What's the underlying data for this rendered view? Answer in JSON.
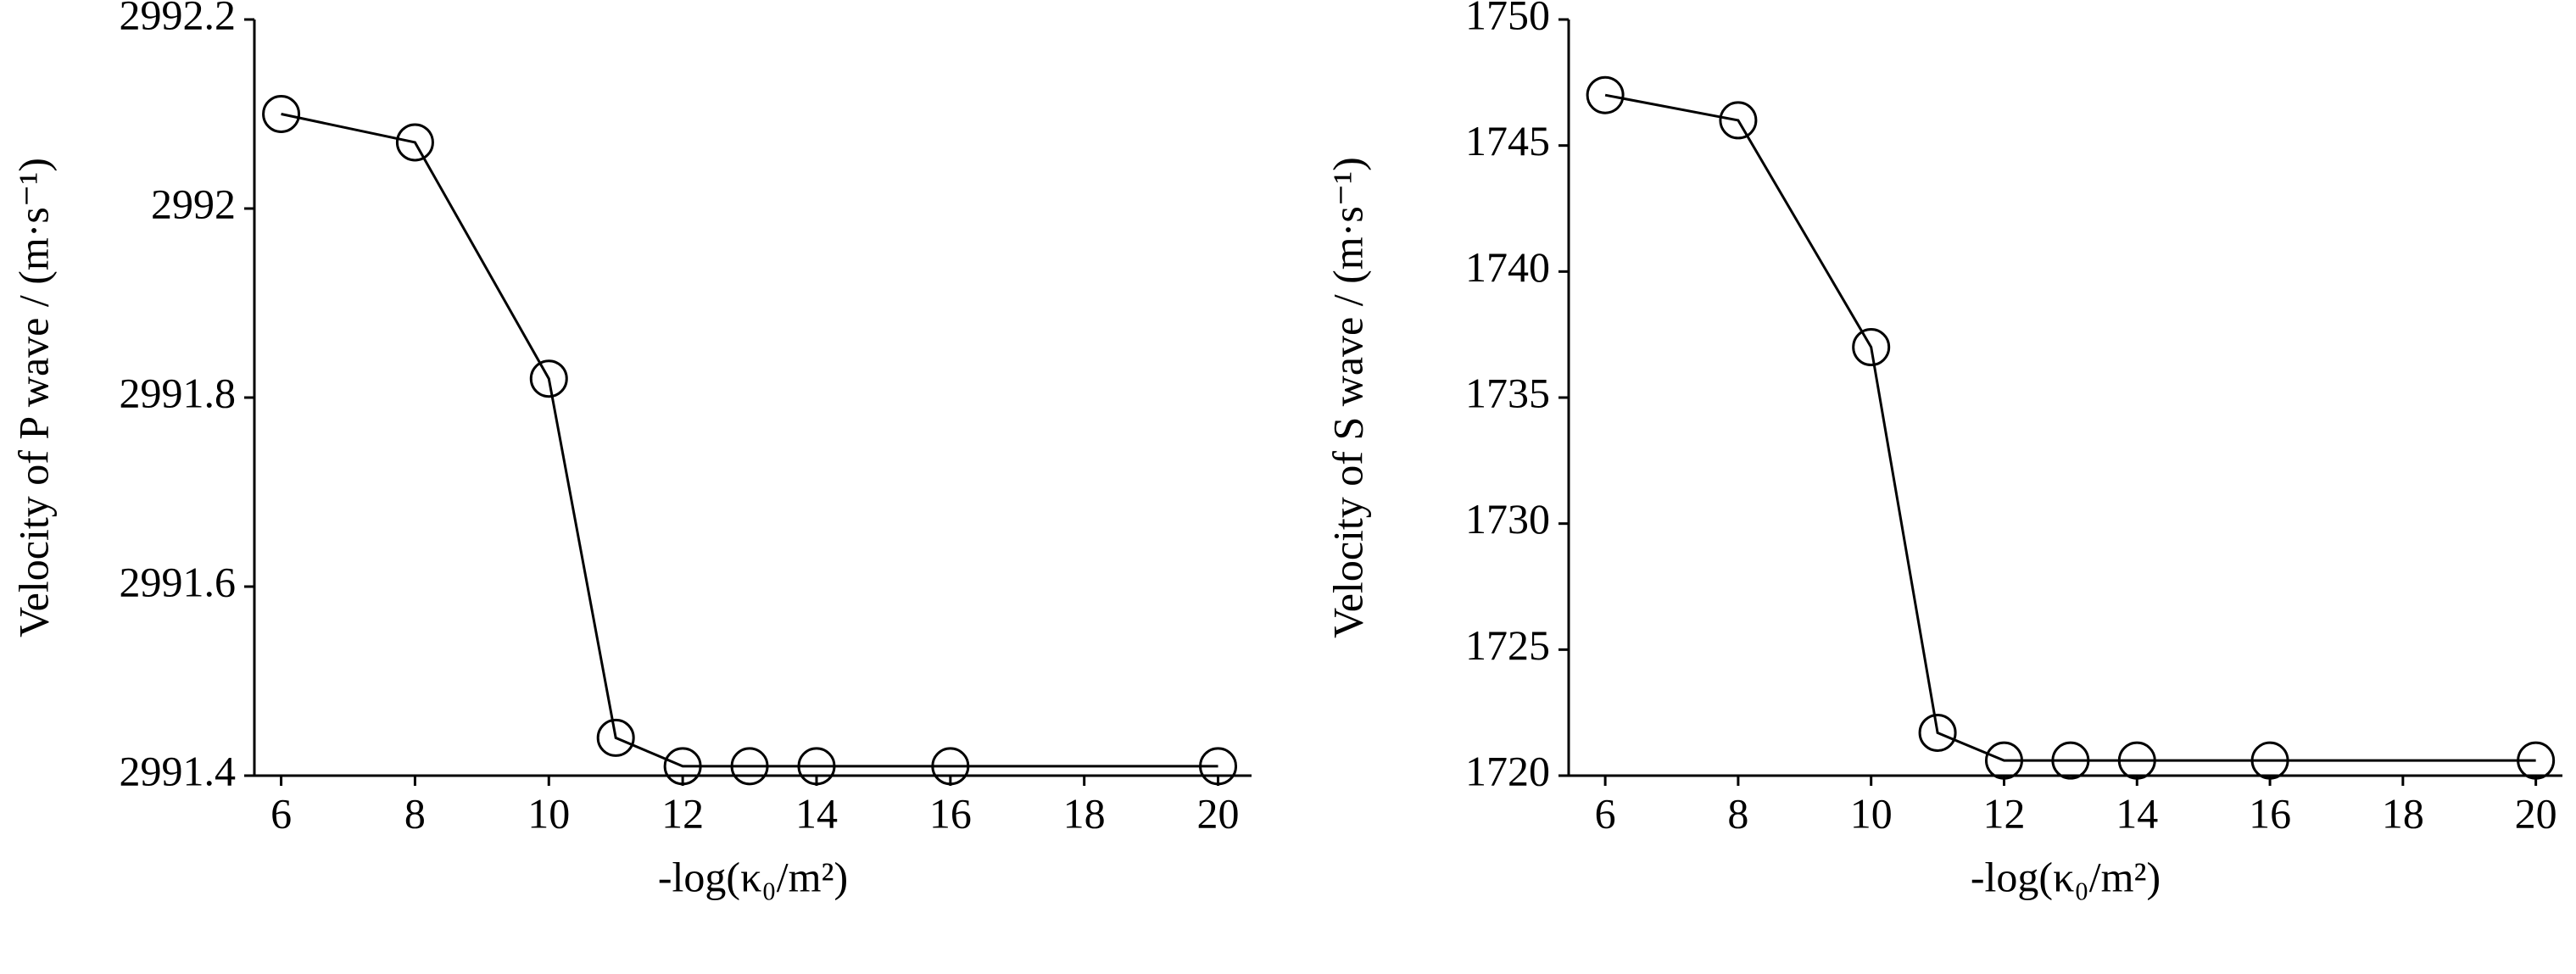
{
  "chart_data": [
    {
      "type": "line",
      "x_label": "-log(κ₀/m²)",
      "y_label": "Velocity of P wave / (m·s⁻¹)",
      "x": [
        6,
        8,
        10,
        11,
        12,
        13,
        14,
        16,
        20
      ],
      "series": [
        {
          "color": "#000000",
          "values": [
            2992.1,
            2992.07,
            2991.82,
            2991.44,
            2991.41,
            2991.41,
            2991.41,
            2991.41,
            2991.41
          ]
        }
      ],
      "xlim": [
        5.6,
        20.5
      ],
      "xticks": [
        6,
        8,
        10,
        12,
        14,
        16,
        18,
        20
      ],
      "ylim": [
        2991.4,
        2992.2
      ],
      "yticks": [
        2991.4,
        2991.6,
        2991.8,
        2992,
        2992.2
      ],
      "grid": false,
      "marker": "open-circle"
    },
    {
      "type": "line",
      "x_label": "-log(κ₀/m²)",
      "y_label": "Velocity of S wave / (m·s⁻¹)",
      "x": [
        6,
        8,
        10,
        11,
        12,
        13,
        14,
        16,
        20
      ],
      "series": [
        {
          "color": "#000000",
          "values": [
            1747,
            1746,
            1737,
            1721.7,
            1720.6,
            1720.6,
            1720.6,
            1720.6,
            1720.6
          ]
        }
      ],
      "xlim": [
        5.45,
        20.4
      ],
      "xticks": [
        6,
        8,
        10,
        12,
        14,
        16,
        18,
        20
      ],
      "ylim": [
        1720,
        1750
      ],
      "yticks": [
        1720,
        1725,
        1730,
        1735,
        1740,
        1745,
        1750
      ],
      "grid": false,
      "marker": "open-circle"
    }
  ]
}
